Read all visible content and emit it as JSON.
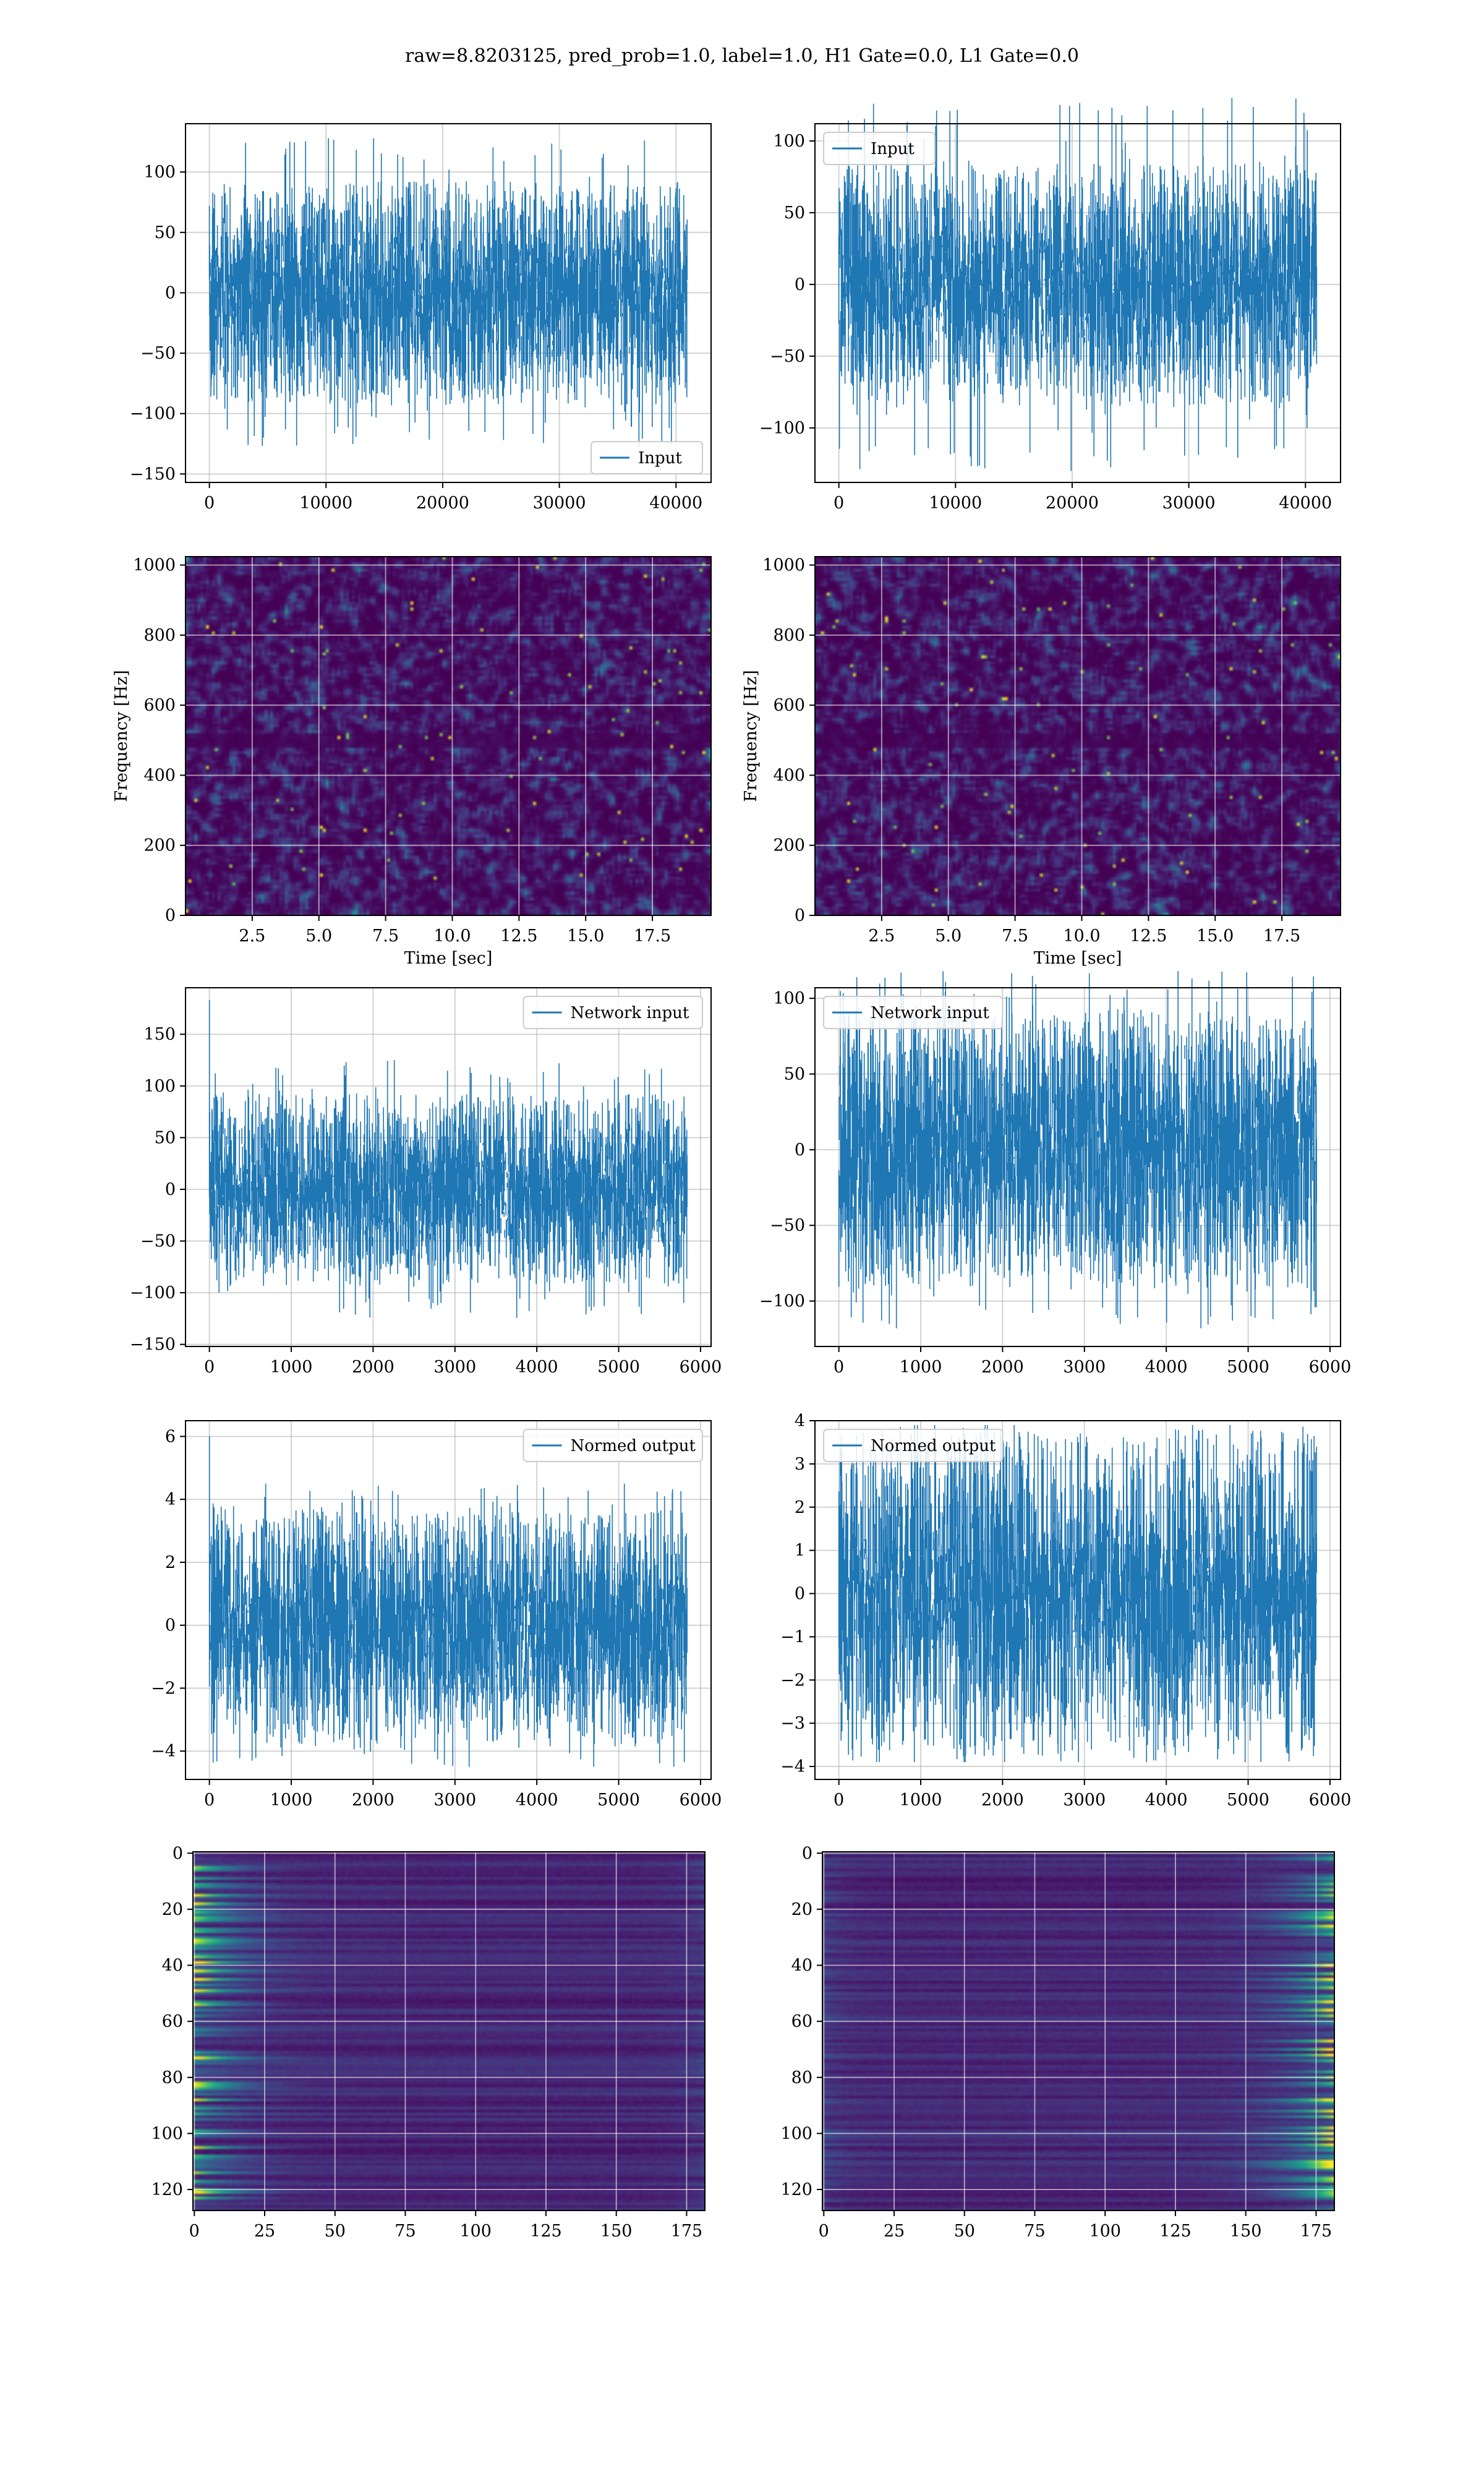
{
  "suptitle": "raw=8.8203125, pred_prob=1.0, label=1.0, H1 Gate=0.0, L1 Gate=0.0",
  "colors": {
    "line": "#1f77b4",
    "grid": "#b0b0b0",
    "axis": "#000000"
  },
  "chart_data": [
    {
      "id": "input-h1",
      "type": "line",
      "series": [
        {
          "name": "Input",
          "n_points": 40960,
          "std": 22,
          "max_abs": 128
        }
      ],
      "xlim": [
        -2048,
        43008
      ],
      "ylim": [
        -157,
        140
      ],
      "xticks": [
        0,
        10000,
        20000,
        30000,
        40000
      ],
      "xticklabels": [
        "0",
        "10000",
        "20000",
        "30000",
        "40000"
      ],
      "yticks": [
        -150,
        -100,
        -50,
        0,
        50,
        100
      ],
      "yticklabels": [
        "−150",
        "−100",
        "−50",
        "0",
        "50",
        "100"
      ],
      "legend": "bottom-right",
      "grid": true
    },
    {
      "id": "input-l1",
      "type": "line",
      "series": [
        {
          "name": "Input",
          "n_points": 40960,
          "std": 20,
          "max_abs": 130
        }
      ],
      "xlim": [
        -2048,
        43008
      ],
      "ylim": [
        -138,
        112
      ],
      "xticks": [
        0,
        10000,
        20000,
        30000,
        40000
      ],
      "xticklabels": [
        "0",
        "10000",
        "20000",
        "30000",
        "40000"
      ],
      "yticks": [
        -100,
        -50,
        0,
        50,
        100
      ],
      "yticklabels": [
        "−100",
        "−50",
        "0",
        "50",
        "100"
      ],
      "legend": "top-left",
      "grid": true
    },
    {
      "id": "spec-h1",
      "type": "heatmap",
      "colormap": "viridis",
      "xlim": [
        0,
        19.7
      ],
      "ylim": [
        0,
        1024
      ],
      "xticks": [
        2.5,
        5.0,
        7.5,
        10.0,
        12.5,
        15.0,
        17.5
      ],
      "xticklabels": [
        "2.5",
        "5.0",
        "7.5",
        "10.0",
        "12.5",
        "15.0",
        "17.5"
      ],
      "yticks": [
        0,
        200,
        400,
        600,
        800,
        1000
      ],
      "yticklabels": [
        "0",
        "200",
        "400",
        "600",
        "800",
        "1000"
      ],
      "xlabel": "Time [sec]",
      "ylabel": "Frequency [Hz]",
      "grid": true
    },
    {
      "id": "spec-l1",
      "type": "heatmap",
      "colormap": "viridis",
      "xlim": [
        0,
        19.7
      ],
      "ylim": [
        0,
        1024
      ],
      "xticks": [
        2.5,
        5.0,
        7.5,
        10.0,
        12.5,
        15.0,
        17.5
      ],
      "xticklabels": [
        "2.5",
        "5.0",
        "7.5",
        "10.0",
        "12.5",
        "15.0",
        "17.5"
      ],
      "yticks": [
        0,
        200,
        400,
        600,
        800,
        1000
      ],
      "yticklabels": [
        "0",
        "200",
        "400",
        "600",
        "800",
        "1000"
      ],
      "xlabel": "Time [sec]",
      "ylabel": "Frequency [Hz]",
      "grid": true
    },
    {
      "id": "net-h1",
      "type": "line",
      "series": [
        {
          "name": "Network input",
          "n_points": 5837,
          "std": 22,
          "max_abs": 125,
          "spike_at": 0,
          "spike_value": 183
        }
      ],
      "xlim": [
        -292,
        6129
      ],
      "ylim": [
        -152,
        195
      ],
      "xticks": [
        0,
        1000,
        2000,
        3000,
        4000,
        5000,
        6000
      ],
      "xticklabels": [
        "0",
        "1000",
        "2000",
        "3000",
        "4000",
        "5000",
        "6000"
      ],
      "yticks": [
        -150,
        -100,
        -50,
        0,
        50,
        100,
        150
      ],
      "yticklabels": [
        "−150",
        "−100",
        "−50",
        "0",
        "50",
        "100",
        "150"
      ],
      "legend": "top-right",
      "grid": true
    },
    {
      "id": "net-l1",
      "type": "line",
      "series": [
        {
          "name": "Network input",
          "n_points": 5837,
          "std": 22,
          "max_abs": 118
        }
      ],
      "xlim": [
        -292,
        6129
      ],
      "ylim": [
        -130,
        107
      ],
      "xticks": [
        0,
        1000,
        2000,
        3000,
        4000,
        5000,
        6000
      ],
      "xticklabels": [
        "0",
        "1000",
        "2000",
        "3000",
        "4000",
        "5000",
        "6000"
      ],
      "yticks": [
        -100,
        -50,
        0,
        50,
        100
      ],
      "yticklabels": [
        "−100",
        "−50",
        "0",
        "50",
        "100"
      ],
      "legend": "top-left",
      "grid": true
    },
    {
      "id": "norm-h1",
      "type": "line",
      "series": [
        {
          "name": "Normed output",
          "n_points": 5837,
          "std": 0.9,
          "max_abs": 4.5,
          "spike_at": 0,
          "spike_value": 6.0
        }
      ],
      "xlim": [
        -292,
        6129
      ],
      "ylim": [
        -4.9,
        6.5
      ],
      "xticks": [
        0,
        1000,
        2000,
        3000,
        4000,
        5000,
        6000
      ],
      "xticklabels": [
        "0",
        "1000",
        "2000",
        "3000",
        "4000",
        "5000",
        "6000"
      ],
      "yticks": [
        -4,
        -2,
        0,
        2,
        4,
        6
      ],
      "yticklabels": [
        "−4",
        "−2",
        "0",
        "2",
        "4",
        "6"
      ],
      "legend": "top-right",
      "grid": true
    },
    {
      "id": "norm-l1",
      "type": "line",
      "series": [
        {
          "name": "Normed output",
          "n_points": 5837,
          "std": 0.9,
          "max_abs": 3.9
        }
      ],
      "xlim": [
        -292,
        6129
      ],
      "ylim": [
        -4.3,
        4.0
      ],
      "xticks": [
        0,
        1000,
        2000,
        3000,
        4000,
        5000,
        6000
      ],
      "xticklabels": [
        "0",
        "1000",
        "2000",
        "3000",
        "4000",
        "5000",
        "6000"
      ],
      "yticks": [
        -4,
        -3,
        -2,
        -1,
        0,
        1,
        2,
        3,
        4
      ],
      "yticklabels": [
        "−4",
        "−3",
        "−2",
        "−1",
        "0",
        "1",
        "2",
        "3",
        "4"
      ],
      "legend": "top-left",
      "grid": true
    },
    {
      "id": "feat-h1",
      "type": "heatmap",
      "colormap": "viridis",
      "rows": 128,
      "cols": 182,
      "bright_side": "left",
      "xlim": [
        -0.5,
        181.5
      ],
      "ylim": [
        127.5,
        -0.5
      ],
      "xticks": [
        0,
        25,
        50,
        75,
        100,
        125,
        150,
        175
      ],
      "xticklabels": [
        "0",
        "25",
        "50",
        "75",
        "100",
        "125",
        "150",
        "175"
      ],
      "yticks": [
        0,
        20,
        40,
        60,
        80,
        100,
        120
      ],
      "yticklabels": [
        "0",
        "20",
        "40",
        "60",
        "80",
        "100",
        "120"
      ],
      "grid": true
    },
    {
      "id": "feat-l1",
      "type": "heatmap",
      "colormap": "viridis",
      "rows": 128,
      "cols": 182,
      "bright_side": "right",
      "xlim": [
        -0.5,
        181.5
      ],
      "ylim": [
        127.5,
        -0.5
      ],
      "xticks": [
        0,
        25,
        50,
        75,
        100,
        125,
        150,
        175
      ],
      "xticklabels": [
        "0",
        "25",
        "50",
        "75",
        "100",
        "125",
        "150",
        "175"
      ],
      "yticks": [
        0,
        20,
        40,
        60,
        80,
        100,
        120
      ],
      "yticklabels": [
        "0",
        "20",
        "40",
        "60",
        "80",
        "100",
        "120"
      ],
      "grid": true
    }
  ]
}
